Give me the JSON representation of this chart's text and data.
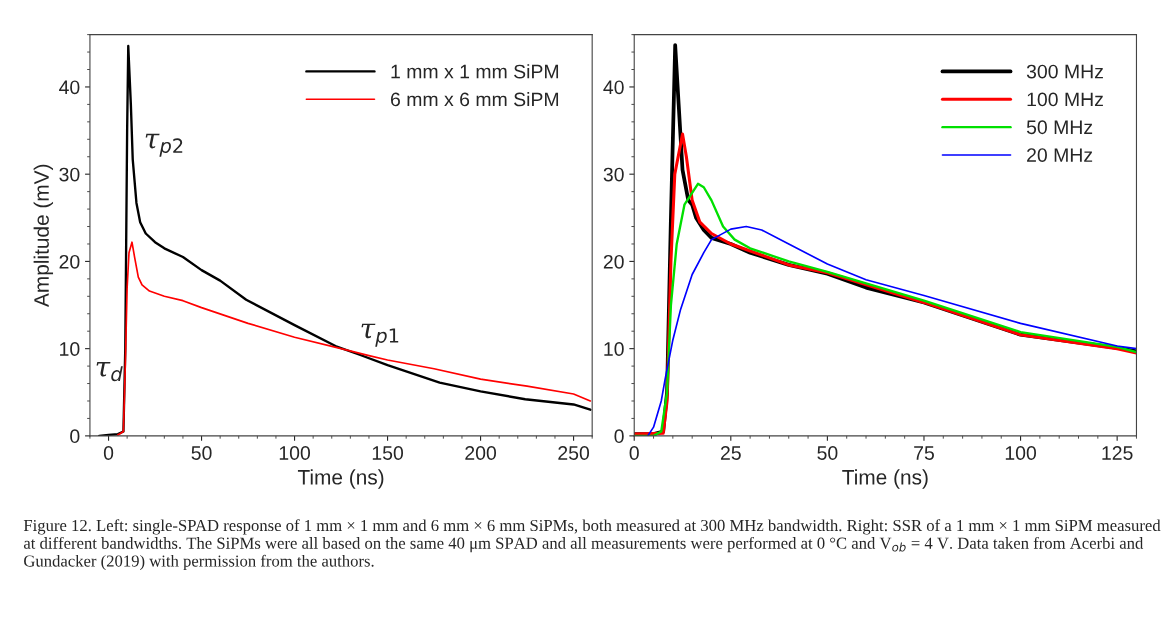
{
  "chart_data": [
    {
      "type": "line",
      "xlabel": "Time (ns)",
      "ylabel": "Amplitude (mV)",
      "xlim": [
        -10,
        260
      ],
      "ylim": [
        0,
        46
      ],
      "xticks": [
        0,
        50,
        100,
        150,
        200,
        250
      ],
      "yticks": [
        0,
        10,
        20,
        30,
        40
      ],
      "grid": false,
      "legend": "top right",
      "marker": "none",
      "line_style": "solid",
      "series": [
        {
          "name": "1 mm x 1 mm SiPM",
          "color": "#000000",
          "x": [
            -5,
            0,
            5,
            8,
            9,
            10,
            10.6,
            12,
            13,
            15,
            17,
            20,
            25,
            30,
            40,
            50,
            60,
            74,
            100,
            122,
            135,
            150,
            178,
            200,
            224,
            250,
            259
          ],
          "values": [
            0,
            0.1,
            0.2,
            0.5,
            10,
            35,
            44.7,
            38,
            31.7,
            26.7,
            24.5,
            23.2,
            22.2,
            21.5,
            20.5,
            19.0,
            17.8,
            15.6,
            12.7,
            10.3,
            9.3,
            8.1,
            6.1,
            5.1,
            4.2,
            3.6,
            3.0
          ]
        },
        {
          "name": "6 mm x 6 mm SiPM",
          "color": "#ff0000",
          "x": [
            5,
            8,
            9,
            10,
            11,
            12.6,
            14,
            16,
            18,
            22,
            30,
            40,
            50,
            75,
            100,
            125,
            140,
            150,
            175,
            200,
            225,
            250,
            259
          ],
          "values": [
            0.1,
            0.5,
            8,
            17,
            21,
            22.2,
            20.5,
            18.2,
            17.3,
            16.6,
            16.0,
            15.5,
            14.7,
            12.9,
            11.3,
            10.0,
            9.2,
            8.7,
            7.7,
            6.5,
            5.7,
            4.8,
            4.0
          ]
        }
      ],
      "annotations": [
        {
          "text": "τ$_{d}$",
          "x": 9,
          "y": 10
        },
        {
          "text": "τ$_{p2}$",
          "x": 13,
          "y": 31.7
        },
        {
          "text": "τ$_{p1}$",
          "x": 135,
          "y": 9.3
        },
        "Figure 12. Left: single-SPAD response of 1 mm × 1 mm and 6 mm × 6 mm SiPMs, both measured at 300 MHz bandwidth. Right: SSR of a 1 mm × 1 mm SiPM measured at different bandwidths. The SiPMs were all based on the same 40 μm SPAD and all measurements were performed at 0 °C and V$_{ob}$ = 4 V. Data taken from Acerbi and Gundacker (2019) with permission from the authors."
      ]
    },
    {
      "type": "line",
      "xlabel": "Time (ns)",
      "xlim": [
        0,
        130
      ],
      "ylim": [
        0,
        46
      ],
      "xticks": [
        0,
        25,
        50,
        75,
        100,
        125
      ],
      "yticks": [
        0,
        10,
        20,
        30,
        40
      ],
      "grid": false,
      "legend": "top right",
      "marker": "none",
      "line_style": "solid",
      "series": [
        {
          "name": "300 MHz",
          "color": "#000000",
          "x": [
            0,
            5,
            7.5,
            8.5,
            9.5,
            10.6,
            11.5,
            12.5,
            14,
            15,
            16,
            18,
            20,
            25,
            30,
            40,
            50,
            60,
            75,
            100,
            125,
            130
          ],
          "values": [
            0.2,
            0.2,
            0.5,
            5,
            25,
            44.8,
            38,
            30.5,
            27,
            26.5,
            25,
            23.6,
            22.7,
            22.0,
            21.0,
            19.6,
            18.6,
            17.0,
            15.3,
            11.6,
            10.1,
            9.7
          ]
        },
        {
          "name": "100 MHz",
          "color": "#ff0000",
          "x": [
            0,
            7.5,
            8.5,
            9.5,
            10.5,
            12.5,
            13.5,
            15,
            17,
            20,
            25,
            40,
            50,
            75,
            100,
            125,
            130
          ],
          "values": [
            0.2,
            0.3,
            4,
            20,
            30,
            34.6,
            32,
            27,
            24.5,
            23.2,
            22.0,
            19.6,
            18.7,
            15.3,
            11.6,
            10.0,
            9.5
          ]
        },
        {
          "name": "50 MHz",
          "color": "#00e000",
          "x": [
            0,
            5,
            7,
            8.5,
            9.5,
            11,
            13,
            16.5,
            18,
            20,
            23,
            26,
            30,
            40,
            50,
            75,
            100,
            125,
            130
          ],
          "values": [
            0,
            0,
            0.5,
            5,
            15,
            22,
            26.5,
            28.9,
            28.5,
            27,
            24,
            22.5,
            21.5,
            20.0,
            18.8,
            15.5,
            11.9,
            10.2,
            9.6
          ]
        },
        {
          "name": "20 MHz",
          "color": "#0000ff",
          "x": [
            3.5,
            5,
            7,
            8,
            10,
            12,
            15,
            18,
            20,
            25,
            29,
            33,
            40,
            50,
            60,
            75,
            100,
            125,
            130
          ],
          "values": [
            0,
            1,
            4,
            6.5,
            11,
            14.5,
            18.5,
            21,
            22.5,
            23.7,
            24.0,
            23.6,
            22.0,
            19.7,
            17.9,
            16.1,
            12.9,
            10.3,
            10.0
          ]
        }
      ]
    }
  ]
}
